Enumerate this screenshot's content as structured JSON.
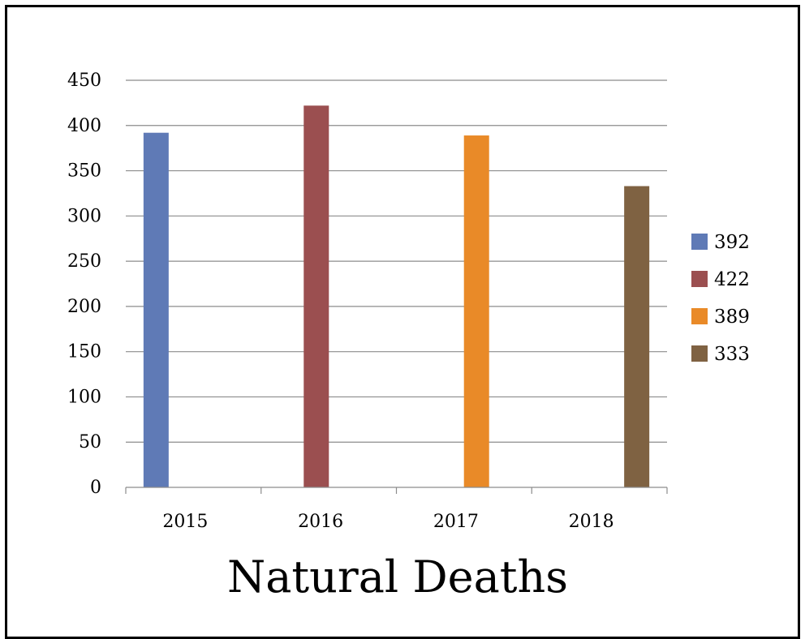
{
  "chart_data": {
    "type": "bar",
    "title": "Natural Deaths",
    "categories": [
      "2015",
      "2016",
      "2017",
      "2018"
    ],
    "series": [
      {
        "name": "392",
        "color": "#5F7AB6",
        "values": [
          392,
          null,
          null,
          null
        ]
      },
      {
        "name": "422",
        "color": "#9B4F50",
        "values": [
          null,
          422,
          null,
          null
        ]
      },
      {
        "name": "389",
        "color": "#E98A28",
        "values": [
          null,
          null,
          389,
          null
        ]
      },
      {
        "name": "333",
        "color": "#7F6242",
        "values": [
          null,
          null,
          null,
          333
        ]
      }
    ],
    "ylim": [
      0,
      450
    ],
    "yticks": [
      0,
      50,
      100,
      150,
      200,
      250,
      300,
      350,
      400,
      450
    ],
    "grid": true,
    "legend_position": "right"
  }
}
